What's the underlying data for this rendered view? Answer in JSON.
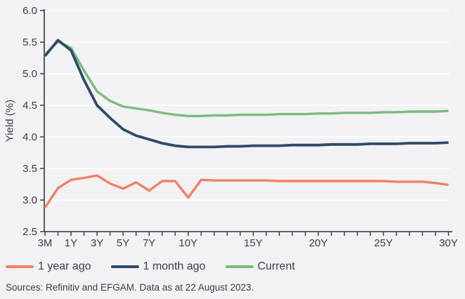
{
  "page": {
    "background": "#F2F2F4",
    "text_color": "#3B3B4D",
    "gridline_color": "#FFFFFF",
    "axis_color": "#33333F"
  },
  "chart_data": {
    "type": "line",
    "title": "",
    "xlabel": "",
    "ylabel": "Yield (%)",
    "ylim": [
      2.5,
      6.0
    ],
    "grid": "horizontal-white-gridlines",
    "legend_position": "bottom-left",
    "y_ticks": [
      "6.0",
      "5.5",
      "5.0",
      "4.5",
      "4.0",
      "3.5",
      "3.0",
      "2.5"
    ],
    "categories": [
      "3M",
      "6M",
      "1Y",
      "2Y",
      "3Y",
      "4Y",
      "5Y",
      "6Y",
      "7Y",
      "8Y",
      "9Y",
      "10Y",
      "11Y",
      "12Y",
      "13Y",
      "14Y",
      "15Y",
      "16Y",
      "17Y",
      "18Y",
      "19Y",
      "20Y",
      "21Y",
      "22Y",
      "23Y",
      "24Y",
      "25Y",
      "26Y",
      "27Y",
      "28Y",
      "29Y",
      "30Y"
    ],
    "x_labeled_ticks": [
      {
        "label": "3M",
        "index": 0
      },
      {
        "label": "1Y",
        "index": 2
      },
      {
        "label": "3Y",
        "index": 4
      },
      {
        "label": "5Y",
        "index": 6
      },
      {
        "label": "7Y",
        "index": 8
      },
      {
        "label": "10Y",
        "index": 11
      },
      {
        "label": "15Y",
        "index": 16
      },
      {
        "label": "20Y",
        "index": 21
      },
      {
        "label": "25Y",
        "index": 26
      },
      {
        "label": "30Y",
        "index": 31
      }
    ],
    "series": [
      {
        "name": "1 year ago",
        "color": "#F08164",
        "values": [
          2.88,
          3.19,
          3.32,
          3.35,
          3.39,
          3.26,
          3.18,
          3.28,
          3.15,
          3.3,
          3.3,
          3.04,
          3.32,
          3.31,
          3.31,
          3.31,
          3.31,
          3.31,
          3.3,
          3.3,
          3.3,
          3.3,
          3.3,
          3.3,
          3.3,
          3.3,
          3.3,
          3.29,
          3.29,
          3.29,
          3.27,
          3.24
        ]
      },
      {
        "name": "1 month ago",
        "color": "#2F4A68",
        "values": [
          5.28,
          5.53,
          5.37,
          4.9,
          4.5,
          4.3,
          4.12,
          4.02,
          3.96,
          3.9,
          3.86,
          3.84,
          3.84,
          3.84,
          3.85,
          3.85,
          3.86,
          3.86,
          3.86,
          3.87,
          3.87,
          3.87,
          3.88,
          3.88,
          3.88,
          3.89,
          3.89,
          3.89,
          3.9,
          3.9,
          3.9,
          3.91
        ]
      },
      {
        "name": "Current",
        "color": "#7CBA7D",
        "values": [
          5.3,
          5.51,
          5.41,
          5.05,
          4.72,
          4.57,
          4.48,
          4.45,
          4.42,
          4.38,
          4.35,
          4.33,
          4.33,
          4.34,
          4.34,
          4.35,
          4.35,
          4.35,
          4.36,
          4.36,
          4.36,
          4.37,
          4.37,
          4.38,
          4.38,
          4.38,
          4.39,
          4.39,
          4.4,
          4.4,
          4.4,
          4.41
        ]
      }
    ]
  },
  "footer": {
    "source_text": "Sources: Refinitiv and EFGAM. Data as at 22 August 2023."
  }
}
